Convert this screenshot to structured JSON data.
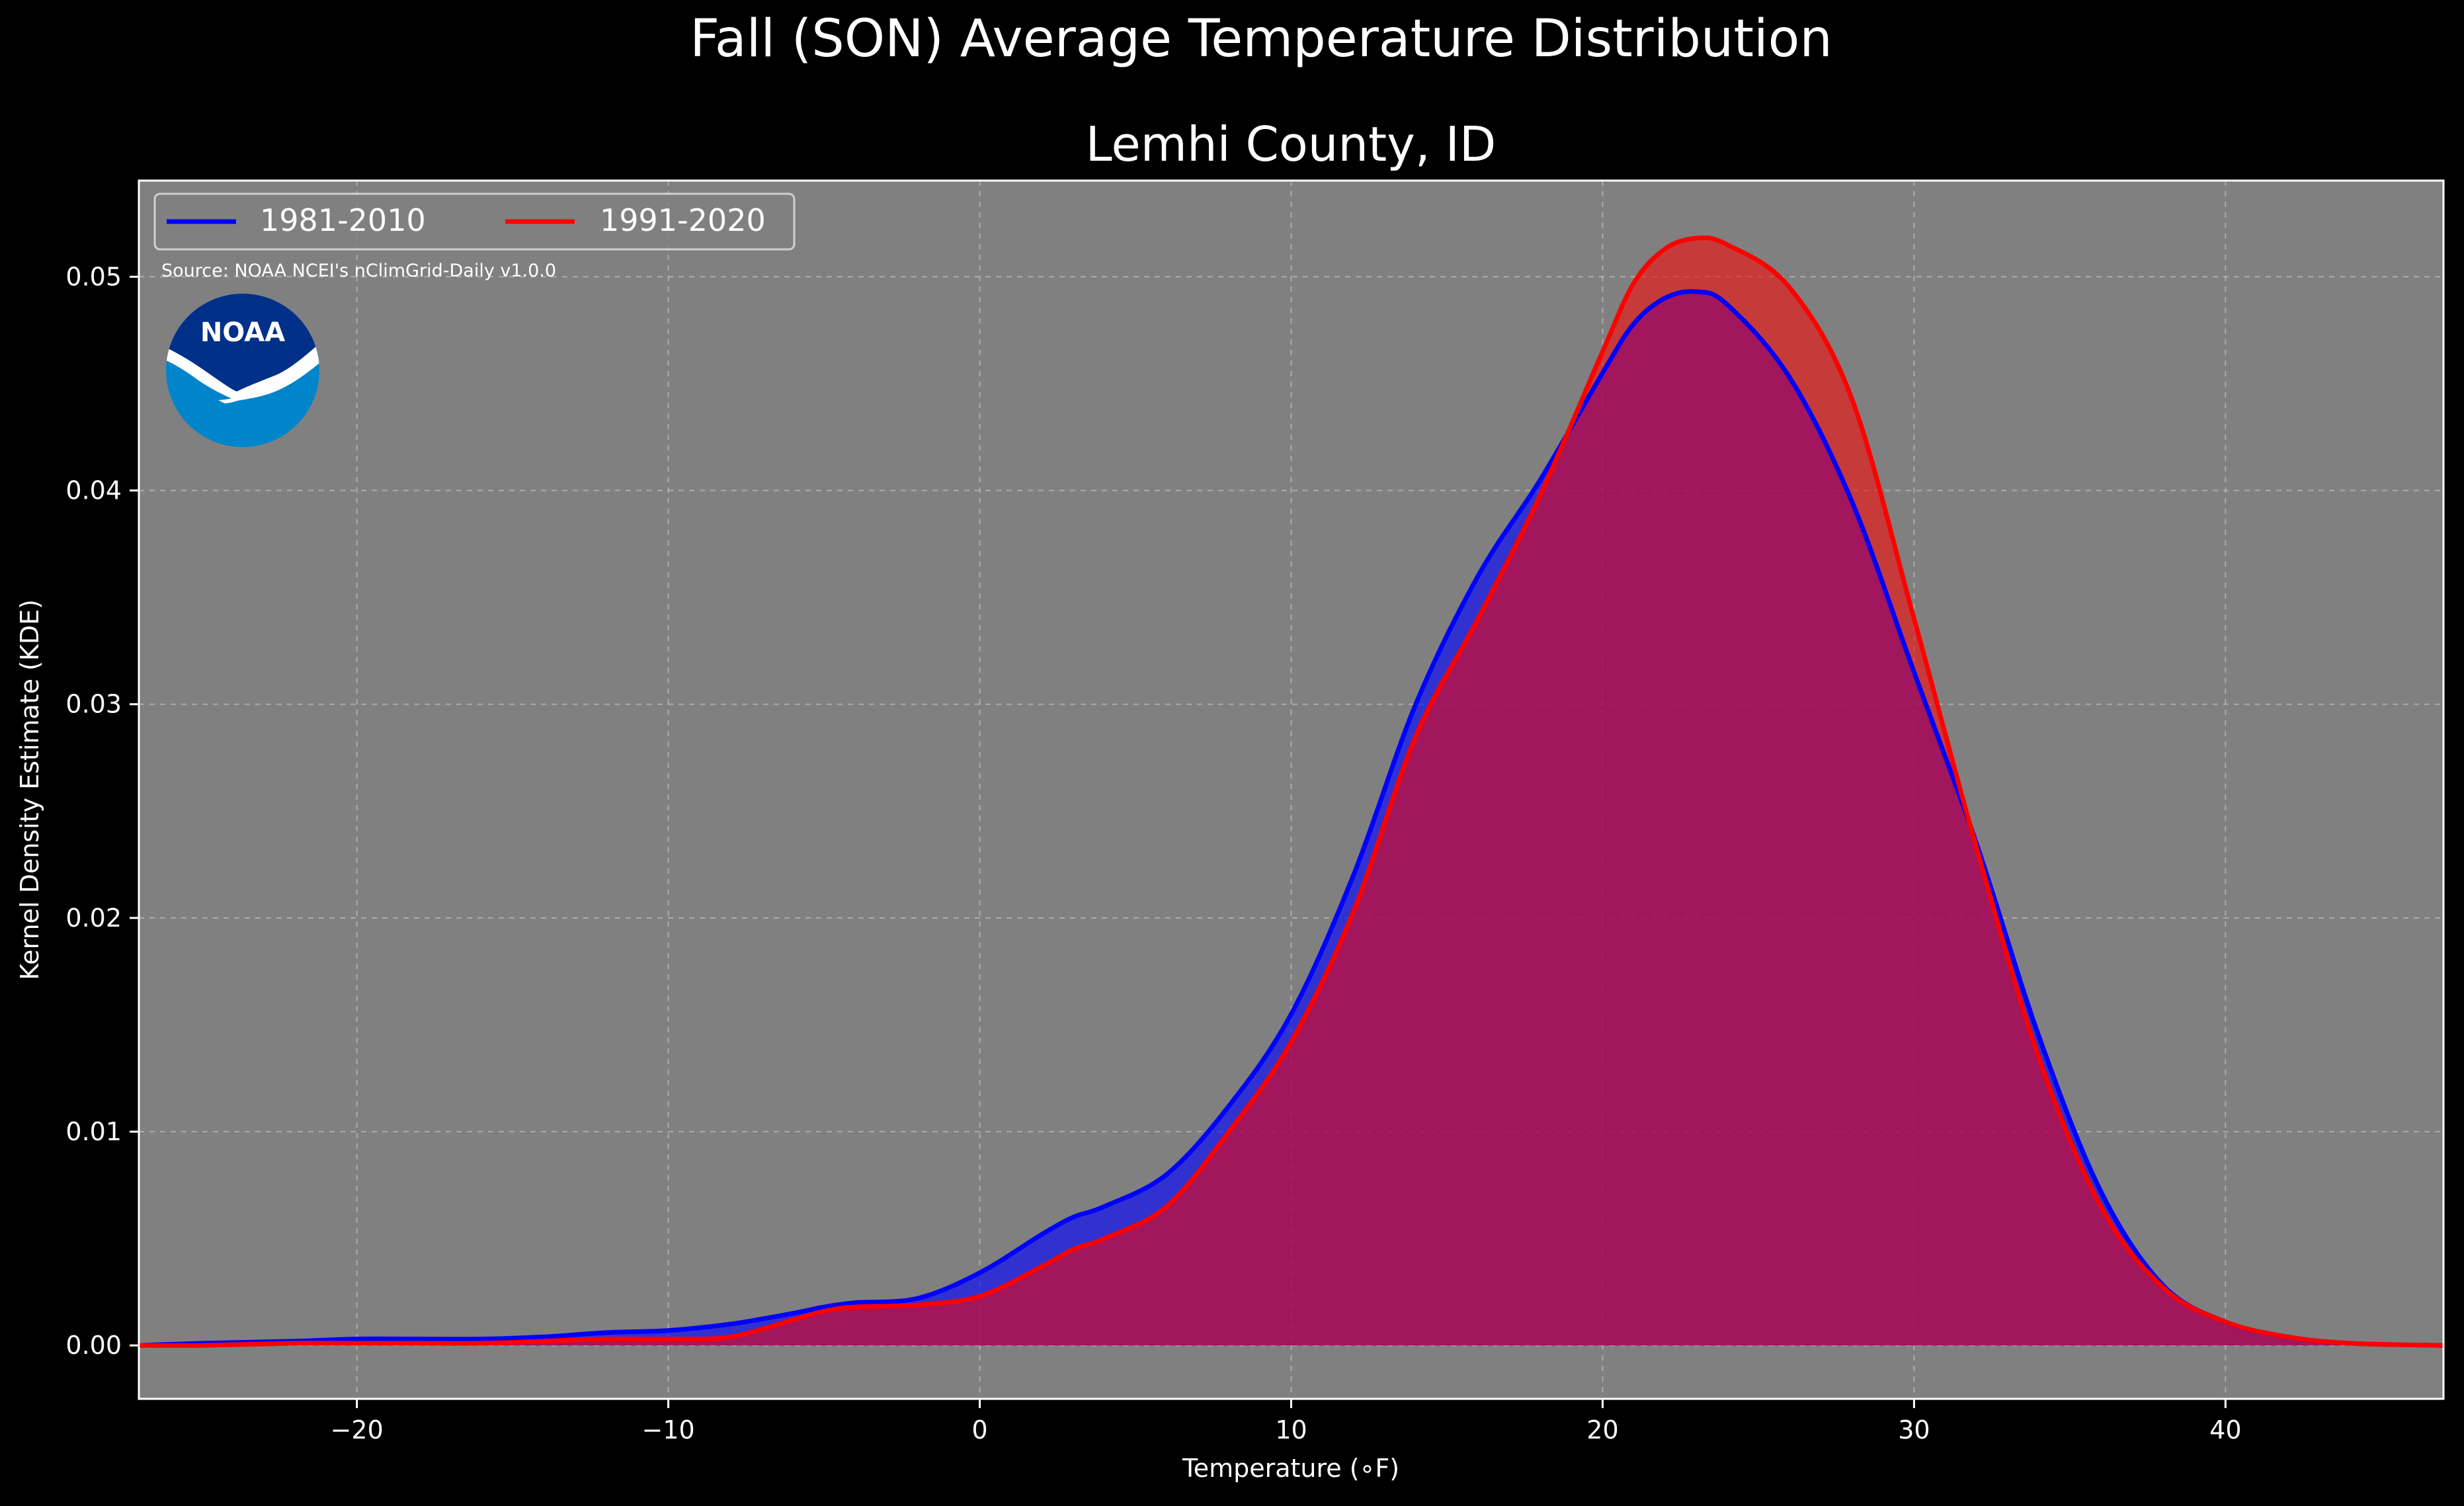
{
  "chart_data": {
    "type": "area",
    "suptitle": "Fall (SON) Average Temperature Distribution",
    "title": "Lemhi County, ID",
    "xlabel": "Temperature ($^\\circ$F)",
    "xlabel_display": "Temperature (∘F)",
    "ylabel": "Kernel Density Estimate (KDE)",
    "xlim": [
      -27,
      47
    ],
    "ylim": [
      -0.0025,
      0.0545
    ],
    "xticks": [
      -20,
      -10,
      0,
      10,
      20,
      30,
      40
    ],
    "xtick_labels": [
      "−20",
      "−10",
      "0",
      "10",
      "20",
      "30",
      "40"
    ],
    "yticks": [
      0.0,
      0.01,
      0.02,
      0.03,
      0.04,
      0.05
    ],
    "ytick_labels": [
      "0.00",
      "0.01",
      "0.02",
      "0.03",
      "0.04",
      "0.05"
    ],
    "grid": true,
    "legend_position": "top-left",
    "source_note": "Source: NOAA NCEI's nClimGrid-Daily v1.0.0",
    "logo_text": "NOAA",
    "colors": {
      "background": "#000000",
      "axes_face": "#808080",
      "text": "#ffffff",
      "series_1": "#0000ff",
      "series_2": "#ff0000",
      "logo_dark": "#003087",
      "logo_light": "#0085CA"
    },
    "series": [
      {
        "name": "1981-2010",
        "color": "#0000ff",
        "x": [
          -27,
          -25,
          -22,
          -20,
          -18,
          -16,
          -14,
          -12,
          -10,
          -8,
          -6,
          -5,
          -4,
          -2,
          0,
          2,
          3,
          4,
          6,
          8,
          10,
          12,
          14,
          16,
          18,
          20,
          21,
          22,
          23,
          24,
          26,
          28,
          30,
          32,
          34,
          36,
          38,
          40,
          42,
          44,
          47
        ],
        "y": [
          0.0,
          0.0001,
          0.0002,
          0.0003,
          0.0003,
          0.0003,
          0.0004,
          0.0006,
          0.0007,
          0.001,
          0.0015,
          0.0018,
          0.002,
          0.0022,
          0.0034,
          0.0052,
          0.006,
          0.0065,
          0.008,
          0.0112,
          0.0155,
          0.022,
          0.03,
          0.036,
          0.0405,
          0.0455,
          0.0478,
          0.049,
          0.0493,
          0.0487,
          0.0453,
          0.0395,
          0.0315,
          0.0235,
          0.0145,
          0.0072,
          0.0028,
          0.0011,
          0.0004,
          0.0001,
          0.0
        ]
      },
      {
        "name": "1991-2020",
        "color": "#ff0000",
        "x": [
          -27,
          -25,
          -22,
          -20,
          -18,
          -16,
          -14,
          -12,
          -10,
          -8,
          -6,
          -5,
          -4,
          -2,
          0,
          2,
          3,
          4,
          6,
          8,
          10,
          12,
          14,
          16,
          18,
          20,
          21,
          22,
          23,
          24,
          26,
          28,
          30,
          32,
          34,
          36,
          38,
          40,
          42,
          44,
          47
        ],
        "y": [
          0.0,
          0.0,
          0.0001,
          0.0001,
          0.0001,
          0.0001,
          0.0002,
          0.0003,
          0.0003,
          0.0004,
          0.0012,
          0.0016,
          0.0018,
          0.0019,
          0.0023,
          0.0037,
          0.0045,
          0.005,
          0.0065,
          0.01,
          0.0142,
          0.0203,
          0.0285,
          0.034,
          0.0398,
          0.0465,
          0.0497,
          0.0513,
          0.0518,
          0.0515,
          0.0495,
          0.0443,
          0.034,
          0.0233,
          0.0135,
          0.0065,
          0.0027,
          0.0011,
          0.0004,
          0.0001,
          0.0
        ]
      }
    ]
  }
}
